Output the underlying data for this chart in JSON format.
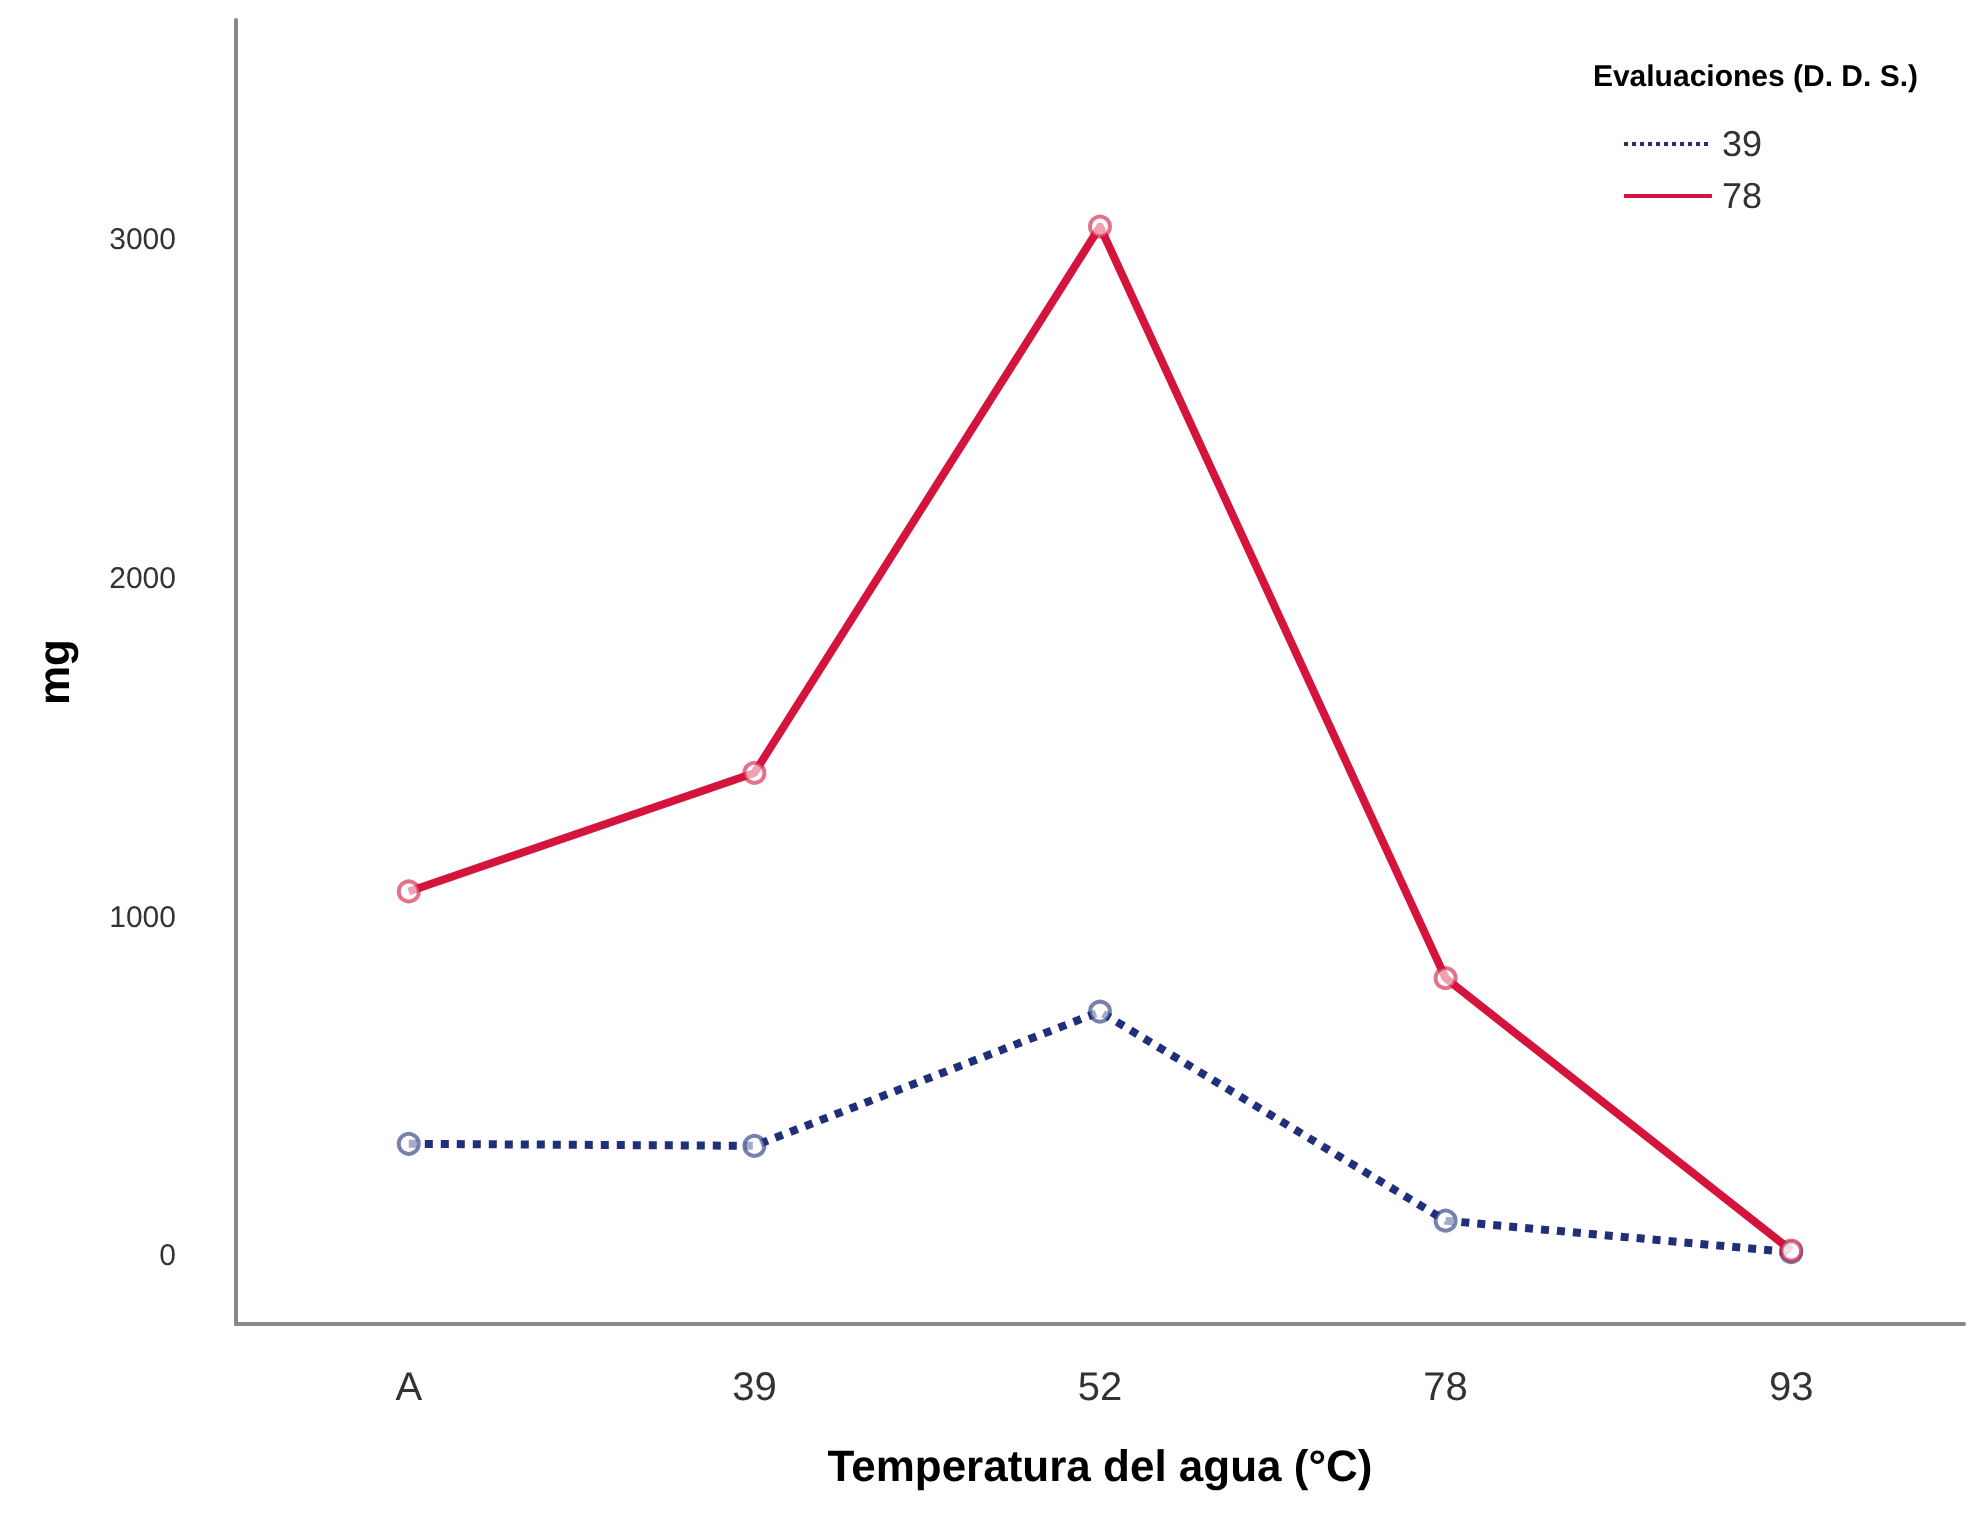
{
  "chart_data": {
    "type": "line",
    "xlabel": "Temperatura del agua (°C)",
    "ylabel": "mg",
    "legend_title": "Evaluaciones (D. D. S.)",
    "categories": [
      "A",
      "39",
      "52",
      "78",
      "93"
    ],
    "series": [
      {
        "name": "39",
        "color": "#1f2f7a",
        "values": [
          332,
          326,
          722,
          105,
          12
        ],
        "line_style": "dotted"
      },
      {
        "name": "78",
        "color": "#d4143c",
        "values": [
          1077,
          1427,
          3040,
          821,
          17
        ],
        "line_style": "solid"
      }
    ],
    "ylim": [
      -200,
      3650
    ],
    "yticks": [
      0,
      1000,
      2000,
      3000
    ],
    "grid": false,
    "legend": "top right",
    "marker": "circle"
  }
}
